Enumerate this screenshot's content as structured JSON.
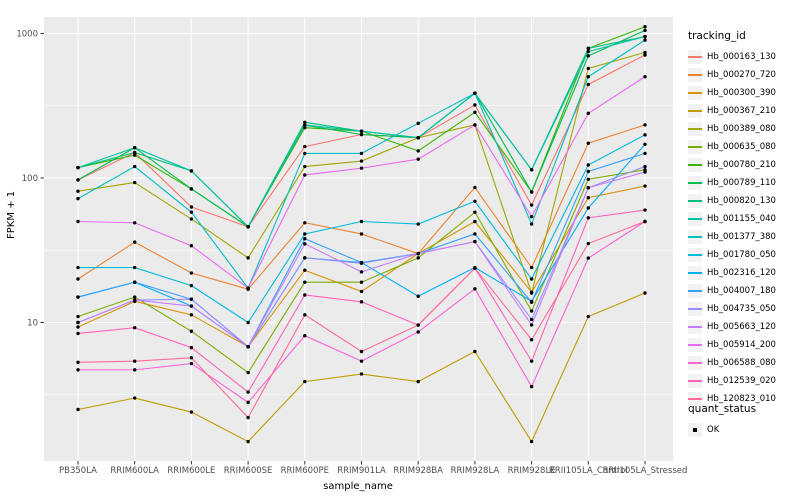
{
  "chart_data": {
    "type": "line",
    "title": "",
    "xlabel": "sample_name",
    "ylabel": "FPKM + 1",
    "y_scale": "log10",
    "yticks": [
      10,
      100,
      1000
    ],
    "y_minor_breaks": [
      3.162,
      31.62,
      316.2
    ],
    "ylim": [
      1.2,
      1200
    ],
    "grid": "on",
    "panel_background": "#EBEBEB",
    "gridline_color": "#FFFFFF",
    "point_color": "#000000",
    "legend_position": "right",
    "categories": [
      "PB350LA",
      "RRIM600LA",
      "RRIM600LE",
      "RRIM600SE",
      "RRIM600PE",
      "RRIM901LA",
      "RRIM928BA",
      "RRIM928LA",
      "RRIM928LE",
      "RRII105LA_Control",
      "RRII105LA_Stressed"
    ],
    "series": [
      {
        "name": "Hb_000163_130",
        "color": "#F8766D",
        "values": [
          97,
          150,
          63,
          46,
          165,
          200,
          190,
          320,
          65,
          444,
          710
        ]
      },
      {
        "name": "Hb_000270_720",
        "color": "#EA8331",
        "values": [
          20,
          36,
          22,
          17,
          49,
          41,
          30,
          86,
          24,
          174,
          233
        ]
      },
      {
        "name": "Hb_000300_390",
        "color": "#D89000",
        "values": [
          9.3,
          14,
          11.3,
          6.8,
          23,
          16.4,
          30,
          50,
          16.2,
          73,
          88
        ]
      },
      {
        "name": "Hb_000367_210",
        "color": "#C09B00",
        "values": [
          2.5,
          3,
          2.4,
          1.5,
          3.9,
          4.4,
          3.9,
          6.3,
          1.5,
          11,
          16
        ]
      },
      {
        "name": "Hb_000389_080",
        "color": "#A3A500",
        "values": [
          81,
          93,
          52,
          28,
          120,
          131,
          190,
          233,
          16,
          573,
          740
        ]
      },
      {
        "name": "Hb_000635_080",
        "color": "#7CAE00",
        "values": [
          11,
          15,
          8.7,
          4.5,
          19,
          19,
          28,
          58,
          12,
          98,
          114
        ]
      },
      {
        "name": "Hb_000780_210",
        "color": "#39B600",
        "values": [
          118,
          144,
          84,
          46,
          223,
          211,
          154,
          285,
          80,
          789,
          1114
        ]
      },
      {
        "name": "Hb_000789_110",
        "color": "#00BB4E",
        "values": [
          97,
          162,
          84,
          46,
          232,
          200,
          190,
          386,
          80,
          700,
          1050
        ]
      },
      {
        "name": "Hb_000820_130",
        "color": "#00BF7D",
        "values": [
          118,
          150,
          112,
          46,
          243,
          211,
          190,
          386,
          114,
          789,
          952
        ]
      },
      {
        "name": "Hb_001155_040",
        "color": "#00C1A3",
        "values": [
          118,
          162,
          112,
          46,
          233,
          211,
          190,
          386,
          114,
          750,
          952
        ]
      },
      {
        "name": "Hb_001377_380",
        "color": "#00BFC4",
        "values": [
          72,
          120,
          58,
          17.3,
          148,
          148,
          239,
          386,
          48,
          502,
          900
        ]
      },
      {
        "name": "Hb_001780_050",
        "color": "#00BBDA",
        "values": [
          24,
          24,
          18,
          10,
          41,
          50,
          48,
          69,
          20,
          123,
          199
        ]
      },
      {
        "name": "Hb_002316_120",
        "color": "#00B0F6",
        "values": [
          15,
          19,
          13,
          6.8,
          28,
          26,
          15.2,
          24,
          14,
          62,
          171
        ]
      },
      {
        "name": "Hb_004007_180",
        "color": "#35A2FF",
        "values": [
          15,
          19,
          14.5,
          6.8,
          38,
          26,
          30,
          41,
          13.8,
          111,
          148
        ]
      },
      {
        "name": "Hb_004735_050",
        "color": "#9590FF",
        "values": [
          10,
          14.3,
          14.5,
          6.8,
          28,
          25.7,
          30,
          36.3,
          10.5,
          85.6,
          120
        ]
      },
      {
        "name": "Hb_005663_120",
        "color": "#C77CFF",
        "values": [
          10,
          14.3,
          13,
          6.8,
          35,
          22.4,
          30,
          36.3,
          9.6,
          85.6,
          110
        ]
      },
      {
        "name": "Hb_005914_200",
        "color": "#E76BF3",
        "values": [
          50,
          49,
          34,
          17.3,
          105,
          117,
          135,
          233,
          54,
          280,
          502
        ]
      },
      {
        "name": "Hb_006588_080",
        "color": "#FA62DB",
        "values": [
          4.7,
          4.7,
          5.2,
          2.8,
          8.1,
          5.4,
          8.6,
          17.1,
          3.6,
          27.9,
          50
        ]
      },
      {
        "name": "Hb_012539_020",
        "color": "#FF62BC",
        "values": [
          8.4,
          9.2,
          6.7,
          3.3,
          15.5,
          13.9,
          9.6,
          23.8,
          5.4,
          53,
          60
        ]
      },
      {
        "name": "Hb_120823_010",
        "color": "#FF6A98",
        "values": [
          5.3,
          5.4,
          5.7,
          2.2,
          11.3,
          6.3,
          9.6,
          23.8,
          7.6,
          35.2,
          50
        ]
      }
    ]
  },
  "legend": {
    "title": "tracking_id",
    "quant_title": "quant_status",
    "quant_label": "OK"
  },
  "axes": {
    "y_title": "FPKM + 1",
    "x_title": "sample_name",
    "y_tick_labels": [
      "10",
      "100",
      "1000"
    ]
  }
}
